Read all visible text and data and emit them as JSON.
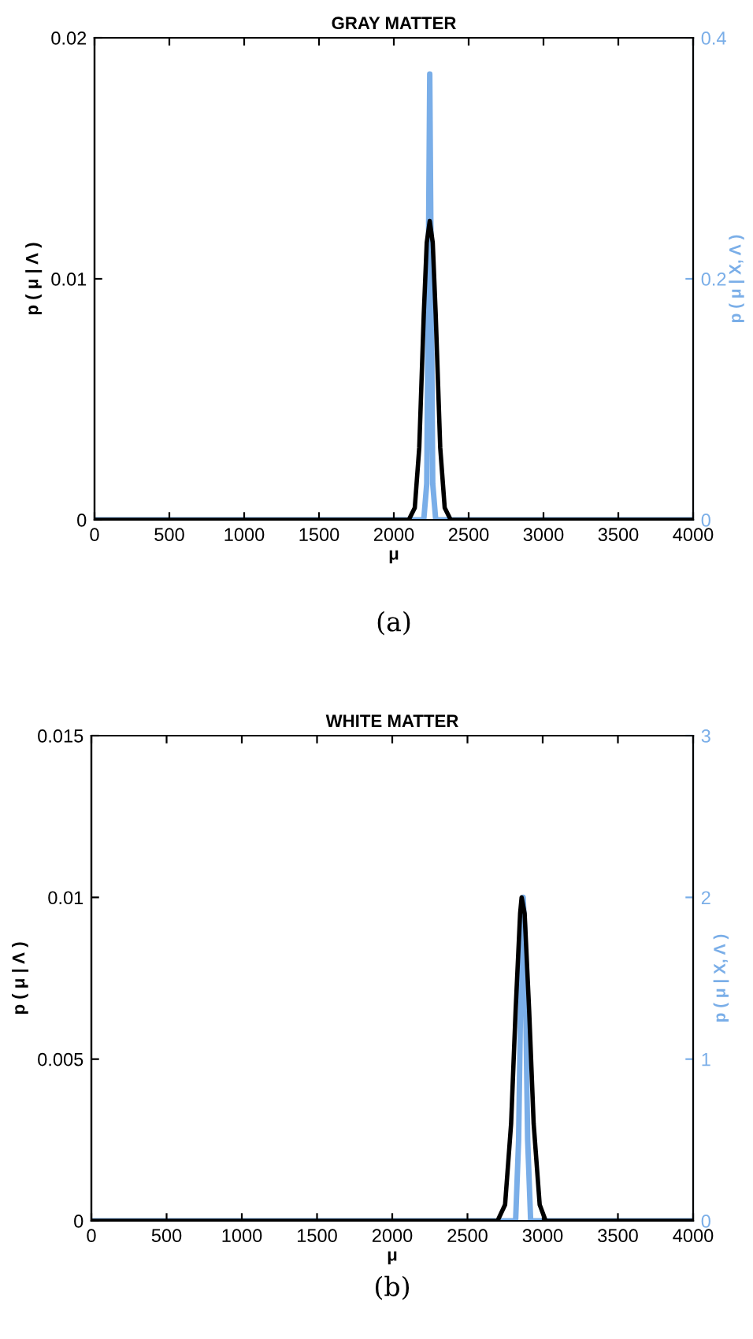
{
  "chart_data": [
    {
      "type": "line",
      "title": "GRAY MATTER",
      "xlabel": "μ",
      "ylabel": "p ( μ | Λ )",
      "y2label": "p ( μ | X, Λ )",
      "annotations": [
        "(a)"
      ],
      "series": [
        {
          "color": "#000000",
          "x": [
            0,
            2100,
            2140,
            2170,
            2200,
            2220,
            2240,
            2260,
            2280,
            2310,
            2340,
            2380,
            4000
          ],
          "values": [
            0,
            0,
            0.0005,
            0.003,
            0.0085,
            0.0115,
            0.0124,
            0.0115,
            0.0085,
            0.003,
            0.0005,
            0,
            0
          ]
        },
        {
          "color": "#7aaee8",
          "axis": "y2",
          "x": [
            0,
            2200,
            2220,
            2230,
            2240,
            2250,
            2260,
            2280,
            4000
          ],
          "values": [
            0,
            0,
            0.03,
            0.2,
            0.37,
            0.2,
            0.03,
            0,
            0
          ]
        }
      ],
      "xlim": [
        0,
        4000
      ],
      "xticks": [
        0,
        500,
        1000,
        1500,
        2000,
        2500,
        3000,
        3500,
        4000
      ],
      "ylim": [
        0,
        0.02
      ],
      "yticks": [
        0,
        0.01,
        0.02
      ],
      "y2lim": [
        0,
        0.4
      ],
      "y2ticks": [
        0,
        0.2,
        0.4
      ],
      "grid": false,
      "legend": false
    },
    {
      "type": "line",
      "title": "WHITE MATTER",
      "xlabel": "μ",
      "ylabel": "p ( μ | Λ )",
      "y2label": "p ( μ | X, Λ )",
      "annotations": [
        "(b)"
      ],
      "series": [
        {
          "color": "#000000",
          "x": [
            0,
            2500,
            2700,
            2750,
            2790,
            2820,
            2850,
            2860,
            2880,
            2910,
            2940,
            2980,
            3020,
            3200,
            4000
          ],
          "values": [
            0,
            0,
            0,
            0.0005,
            0.003,
            0.0065,
            0.0095,
            0.01,
            0.0095,
            0.0065,
            0.003,
            0.0005,
            0,
            0,
            0
          ]
        },
        {
          "color": "#7aaee8",
          "axis": "y2",
          "x": [
            0,
            2820,
            2840,
            2860,
            2870,
            2880,
            2900,
            2920,
            4000
          ],
          "values": [
            0,
            0,
            0.5,
            1.8,
            2,
            1.8,
            0.5,
            0,
            0
          ]
        }
      ],
      "xlim": [
        0,
        4000
      ],
      "xticks": [
        0,
        500,
        1000,
        1500,
        2000,
        2500,
        3000,
        3500,
        4000
      ],
      "ylim": [
        0,
        0.015
      ],
      "yticks": [
        0,
        0.005,
        0.01,
        0.015
      ],
      "y2lim": [
        0,
        3
      ],
      "y2ticks": [
        0,
        1,
        2,
        3
      ],
      "grid": false,
      "legend": false
    }
  ]
}
